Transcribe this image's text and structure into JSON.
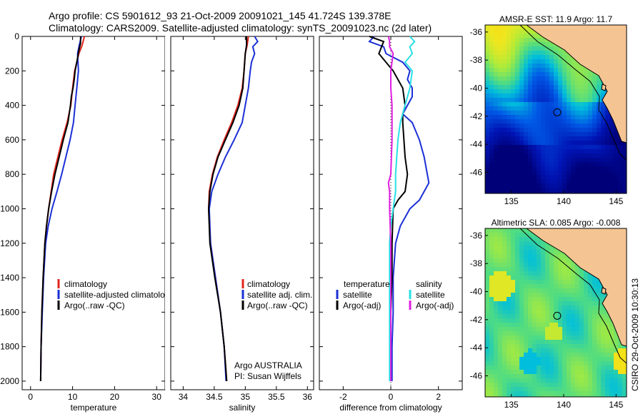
{
  "header": {
    "line1": "Argo profile: CS 5901612_93 21-Oct-2009 20091021_145 41.724S 139.378E",
    "line2": "Climatology: CARS2009. Satellite-adjusted climatology: synTS_20091023.nc (2d later)"
  },
  "credit": "CSIRO 29-Oct-2009 10:30:13",
  "colors": {
    "climatology": "#e0261c",
    "satellite": "#1b2fd6",
    "argo": "#000000",
    "sal_satellite": "#29e0e6",
    "sal_argo": "#e020e0",
    "land": "#f5c493"
  },
  "chart_data": [
    {
      "type": "line",
      "panel": "temperature",
      "xlabel": "temperature",
      "xlim": [
        -2,
        32
      ],
      "ylim": [
        2050,
        0
      ],
      "xticks": [
        "0",
        "10",
        "20",
        "30"
      ],
      "xtick_values": [
        0,
        10,
        20,
        30
      ],
      "yticks": [
        "0",
        "200",
        "400",
        "600",
        "800",
        "1000",
        "1200",
        "1400",
        "1600",
        "1800",
        "2000"
      ],
      "ytick_values": [
        0,
        200,
        400,
        600,
        800,
        1000,
        1200,
        1400,
        1600,
        1800,
        2000
      ],
      "legend": [
        "climatology",
        "satellite-adjusted climatology",
        "Argo(..raw -QC)"
      ],
      "series": [
        {
          "name": "climatology",
          "color": "#e0261c",
          "points": [
            [
              12.8,
              0
            ],
            [
              12.3,
              50
            ],
            [
              11.5,
              100
            ],
            [
              10.5,
              200
            ],
            [
              10.0,
              300
            ],
            [
              9.6,
              400
            ],
            [
              8.7,
              500
            ],
            [
              7.5,
              600
            ],
            [
              6.5,
              700
            ],
            [
              5.5,
              800
            ],
            [
              4.9,
              900
            ],
            [
              4.3,
              1000
            ],
            [
              3.8,
              1100
            ],
            [
              3.4,
              1200
            ],
            [
              3.0,
              1400
            ],
            [
              2.7,
              1600
            ],
            [
              2.5,
              1800
            ],
            [
              2.4,
              2000
            ]
          ]
        },
        {
          "name": "satellite-adjusted climatology",
          "color": "#1b2fd6",
          "points": [
            [
              12.1,
              0
            ],
            [
              11.6,
              50
            ],
            [
              11.2,
              100
            ],
            [
              11.4,
              200
            ],
            [
              11.0,
              300
            ],
            [
              10.6,
              400
            ],
            [
              10.2,
              500
            ],
            [
              9.4,
              600
            ],
            [
              8.4,
              700
            ],
            [
              7.4,
              800
            ],
            [
              6.3,
              900
            ],
            [
              5.1,
              1000
            ],
            [
              4.2,
              1100
            ],
            [
              3.6,
              1200
            ],
            [
              3.1,
              1400
            ],
            [
              2.8,
              1600
            ],
            [
              2.5,
              1800
            ],
            [
              2.4,
              2000
            ]
          ]
        },
        {
          "name": "Argo(..raw -QC)",
          "color": "#000000",
          "points": [
            [
              11.9,
              0
            ],
            [
              11.9,
              40
            ],
            [
              11.5,
              80
            ],
            [
              11.0,
              150
            ],
            [
              10.6,
              200
            ],
            [
              10.4,
              250
            ],
            [
              10.1,
              300
            ],
            [
              9.7,
              350
            ],
            [
              9.5,
              400
            ],
            [
              8.9,
              500
            ],
            [
              7.8,
              600
            ],
            [
              6.8,
              700
            ],
            [
              5.8,
              800
            ],
            [
              5.0,
              900
            ],
            [
              4.3,
              1000
            ],
            [
              3.8,
              1100
            ],
            [
              3.4,
              1200
            ],
            [
              3.0,
              1400
            ],
            [
              2.7,
              1600
            ],
            [
              2.5,
              1800
            ],
            [
              2.4,
              2000
            ]
          ]
        }
      ]
    },
    {
      "type": "line",
      "panel": "salinity",
      "xlabel": "salinity",
      "xlim": [
        33.8,
        36.1
      ],
      "ylim": [
        2050,
        0
      ],
      "xticks": [
        "34",
        "34.5",
        "35",
        "35.5",
        "36"
      ],
      "xtick_values": [
        34,
        34.5,
        35,
        35.5,
        36
      ],
      "legend": [
        "climatology",
        "satellite adj. clim.",
        "Argo(..raw -QC)"
      ],
      "annotation": [
        "Argo AUSTRALIA",
        "PI: Susan Wijffels"
      ],
      "series": [
        {
          "name": "climatology",
          "color": "#e0261c",
          "points": [
            [
              35.05,
              0
            ],
            [
              35.03,
              50
            ],
            [
              35.0,
              100
            ],
            [
              34.98,
              200
            ],
            [
              34.95,
              300
            ],
            [
              34.88,
              400
            ],
            [
              34.78,
              500
            ],
            [
              34.66,
              600
            ],
            [
              34.55,
              700
            ],
            [
              34.47,
              800
            ],
            [
              34.42,
              900
            ],
            [
              34.41,
              1000
            ],
            [
              34.44,
              1200
            ],
            [
              34.52,
              1400
            ],
            [
              34.6,
              1600
            ],
            [
              34.66,
              1800
            ],
            [
              34.7,
              2000
            ]
          ]
        },
        {
          "name": "satellite adj. clim.",
          "color": "#1b2fd6",
          "points": [
            [
              35.15,
              0
            ],
            [
              35.2,
              30
            ],
            [
              35.12,
              60
            ],
            [
              35.15,
              100
            ],
            [
              35.1,
              150
            ],
            [
              35.08,
              200
            ],
            [
              35.05,
              300
            ],
            [
              35.0,
              400
            ],
            [
              34.95,
              500
            ],
            [
              34.82,
              600
            ],
            [
              34.68,
              700
            ],
            [
              34.56,
              800
            ],
            [
              34.46,
              900
            ],
            [
              34.42,
              1000
            ],
            [
              34.44,
              1200
            ],
            [
              34.52,
              1400
            ],
            [
              34.6,
              1600
            ],
            [
              34.66,
              1800
            ],
            [
              34.69,
              2000
            ]
          ]
        },
        {
          "name": "Argo(..raw -QC)",
          "color": "#000000",
          "points": [
            [
              35.02,
              0
            ],
            [
              35.02,
              50
            ],
            [
              35.0,
              100
            ],
            [
              34.98,
              200
            ],
            [
              34.96,
              300
            ],
            [
              34.9,
              400
            ],
            [
              34.8,
              500
            ],
            [
              34.68,
              600
            ],
            [
              34.56,
              700
            ],
            [
              34.48,
              800
            ],
            [
              34.43,
              900
            ],
            [
              34.41,
              1000
            ],
            [
              34.43,
              1200
            ],
            [
              34.51,
              1400
            ],
            [
              34.6,
              1600
            ],
            [
              34.66,
              1800
            ],
            [
              34.7,
              2000
            ]
          ]
        }
      ]
    },
    {
      "type": "line",
      "panel": "difference",
      "xlabel": "difference from climatology",
      "xlim": [
        -3,
        3
      ],
      "ylim": [
        2050,
        0
      ],
      "xticks": [
        "-2",
        "0",
        "2"
      ],
      "xtick_values": [
        -2,
        0,
        2
      ],
      "legend_temperature": {
        "header": "temperature",
        "items": [
          "satellite",
          "Argo(-adj)"
        ]
      },
      "legend_salinity": {
        "header": "salinity",
        "items": [
          "satellite",
          "Argo(-adj)"
        ]
      },
      "series": [
        {
          "name": "temperature satellite",
          "color": "#1b2fd6",
          "points": [
            [
              -0.7,
              0
            ],
            [
              -0.9,
              30
            ],
            [
              -0.3,
              60
            ],
            [
              -0.2,
              100
            ],
            [
              0.5,
              150
            ],
            [
              0.8,
              200
            ],
            [
              0.7,
              250
            ],
            [
              0.9,
              300
            ],
            [
              0.9,
              350
            ],
            [
              0.7,
              400
            ],
            [
              0.5,
              450
            ],
            [
              0.9,
              500
            ],
            [
              1.2,
              600
            ],
            [
              1.4,
              700
            ],
            [
              1.6,
              850
            ],
            [
              1.2,
              950
            ],
            [
              0.8,
              1000
            ],
            [
              0.4,
              1100
            ],
            [
              0.2,
              1200
            ],
            [
              0.1,
              1400
            ],
            [
              0.1,
              1600
            ],
            [
              0.05,
              1800
            ],
            [
              0.05,
              2000
            ]
          ]
        },
        {
          "name": "temperature Argo(-adj)",
          "color": "#000000",
          "points": [
            [
              -0.9,
              0
            ],
            [
              -0.3,
              30
            ],
            [
              -0.5,
              100
            ],
            [
              0.1,
              200
            ],
            [
              0.5,
              300
            ],
            [
              0.6,
              400
            ],
            [
              0.5,
              450
            ],
            [
              0.5,
              500
            ],
            [
              0.6,
              700
            ],
            [
              0.7,
              800
            ],
            [
              0.6,
              900
            ],
            [
              0.3,
              950
            ],
            [
              0.1,
              1000
            ],
            [
              0.05,
              1200
            ],
            [
              0.05,
              1400
            ],
            [
              0.0,
              1600
            ],
            [
              0.0,
              1800
            ],
            [
              0.0,
              2000
            ]
          ]
        },
        {
          "name": "salinity satellite",
          "color": "#29e0e6",
          "points": [
            [
              0.8,
              0
            ],
            [
              1.0,
              30
            ],
            [
              0.8,
              60
            ],
            [
              0.9,
              100
            ],
            [
              0.6,
              150
            ],
            [
              0.9,
              200
            ],
            [
              0.8,
              300
            ],
            [
              0.6,
              400
            ],
            [
              0.4,
              500
            ],
            [
              0.3,
              600
            ],
            [
              0.25,
              700
            ],
            [
              0.2,
              800
            ],
            [
              0.2,
              900
            ],
            [
              0.1,
              1000
            ],
            [
              0.0,
              1100
            ],
            [
              -0.05,
              1200
            ],
            [
              -0.05,
              1400
            ],
            [
              -0.05,
              1600
            ],
            [
              -0.05,
              1800
            ],
            [
              -0.05,
              2000
            ]
          ]
        },
        {
          "name": "salinity Argo(-adj)",
          "color": "#e020e0",
          "points": [
            [
              -0.1,
              0
            ],
            [
              -0.05,
              30
            ],
            [
              -0.05,
              60
            ],
            [
              0.1,
              100
            ],
            [
              0.0,
              200
            ],
            [
              0.0,
              300
            ],
            [
              0.05,
              400
            ],
            [
              0.05,
              600
            ],
            [
              0.0,
              800
            ],
            [
              -0.1,
              850
            ],
            [
              -0.05,
              900
            ],
            [
              -0.05,
              1000
            ],
            [
              0.0,
              1200
            ],
            [
              0.0,
              1400
            ],
            [
              0.0,
              1600
            ],
            [
              0.0,
              1800
            ],
            [
              0.0,
              2000
            ]
          ]
        }
      ]
    },
    {
      "type": "heatmap",
      "panel": "sst-map",
      "title": "AMSR-E SST: 11.9 Argo: 11.7",
      "xlim": [
        132.5,
        146.0
      ],
      "ylim": [
        -47.5,
        -35.5
      ],
      "xticks": [
        "135",
        "140",
        "145"
      ],
      "xtick_values": [
        135,
        140,
        145
      ],
      "yticks": [
        "-36",
        "-38",
        "-40",
        "-42",
        "-44",
        "-46"
      ],
      "ytick_values": [
        -36,
        -38,
        -40,
        -42,
        -44,
        -46
      ],
      "float_position": [
        139.38,
        -41.72
      ]
    },
    {
      "type": "heatmap",
      "panel": "sla-map",
      "title": "Altimetric SLA: 0.085 Argo: -0.008",
      "xlim": [
        132.5,
        146.0
      ],
      "ylim": [
        -47.5,
        -35.5
      ],
      "xticks": [
        "135",
        "140",
        "145"
      ],
      "xtick_values": [
        135,
        140,
        145
      ],
      "yticks": [
        "-36",
        "-38",
        "-40",
        "-42",
        "-44",
        "-46"
      ],
      "ytick_values": [
        -36,
        -38,
        -40,
        -42,
        -44,
        -46
      ],
      "float_position": [
        139.38,
        -41.72
      ]
    }
  ]
}
